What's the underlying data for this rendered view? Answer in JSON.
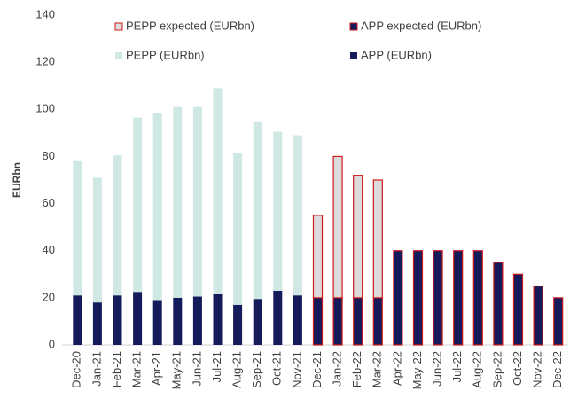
{
  "chart_data": {
    "type": "bar",
    "stacked": true,
    "y_label": "EURbn",
    "categories": [
      "Dec-20",
      "Jan-21",
      "Feb-21",
      "Mar-21",
      "Apr-21",
      "May-21",
      "Jun-21",
      "Jul-21",
      "Aug-21",
      "Sep-21",
      "Oct-21",
      "Nov-21",
      "Dec-21",
      "Jan-22",
      "Feb-22",
      "Mar-22",
      "Apr-22",
      "May-22",
      "Jun-22",
      "Jul-22",
      "Aug-22",
      "Sep-22",
      "Oct-22",
      "Nov-22",
      "Dec-22"
    ],
    "series": [
      {
        "name": "APP (EURbn)",
        "color": "#141a5a",
        "values": [
          21,
          18,
          21,
          22.5,
          19,
          20,
          20.5,
          21.5,
          17,
          19.5,
          23,
          21,
          null,
          null,
          null,
          null,
          null,
          null,
          null,
          null,
          null,
          null,
          null,
          null,
          null
        ]
      },
      {
        "name": "APP expected (EURbn)",
        "color": "#141a5a",
        "edgecolor": "#d11a1a",
        "values": [
          null,
          null,
          null,
          null,
          null,
          null,
          null,
          null,
          null,
          null,
          null,
          null,
          20,
          20,
          20,
          20,
          40,
          40,
          40,
          40,
          40,
          35,
          30,
          25,
          20
        ]
      },
      {
        "name": "PEPP (EURbn)",
        "color": "#cfe8e4",
        "values": [
          57,
          53,
          59.5,
          74,
          79.5,
          81,
          80.5,
          87.5,
          64.5,
          75,
          67.5,
          68,
          null,
          null,
          null,
          null,
          null,
          null,
          null,
          null,
          null,
          null,
          null,
          null,
          null
        ]
      },
      {
        "name": "PEPP expected (EURbn)",
        "color": "#dcdcdc",
        "edgecolor": "#d11a1a",
        "values": [
          null,
          null,
          null,
          null,
          null,
          null,
          null,
          null,
          null,
          null,
          null,
          null,
          35,
          60,
          52,
          50,
          null,
          null,
          null,
          null,
          null,
          null,
          null,
          null,
          null
        ]
      }
    ],
    "ylim": [
      0,
      140
    ],
    "yticks": [
      0,
      20,
      40,
      60,
      80,
      100,
      120,
      140
    ],
    "grid": false
  }
}
